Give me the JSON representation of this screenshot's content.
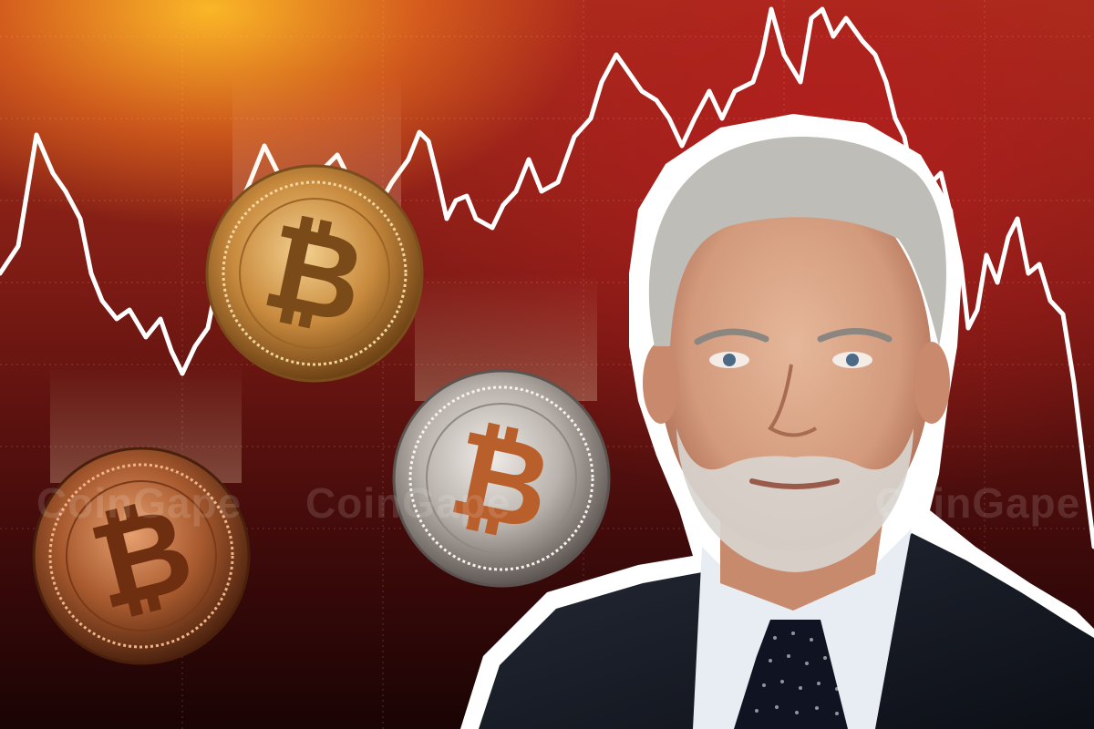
{
  "watermark": {
    "text": "CoinGape",
    "color": "#ffffff"
  },
  "background": {
    "top_glow": "#ffb828",
    "mid": "#a8301c",
    "bottom": "#1a0404",
    "line_color": "#ffffff"
  },
  "coins": [
    {
      "name": "gold-bitcoin-coin",
      "tone": "#d9a35a",
      "symbol": "₿"
    },
    {
      "name": "silver-bitcoin-coin",
      "tone": "#c9c4c0",
      "symbol": "₿"
    },
    {
      "name": "copper-bitcoin-coin",
      "tone": "#b8643a",
      "symbol": "₿"
    }
  ],
  "person": {
    "description_icon": "portrait-cutout",
    "suit_color": "#151923",
    "shirt_color": "#e8ecf3",
    "tie_color": "#0f1322",
    "hair_color": "#bfbdb8",
    "skin_color": "#d9a889"
  }
}
